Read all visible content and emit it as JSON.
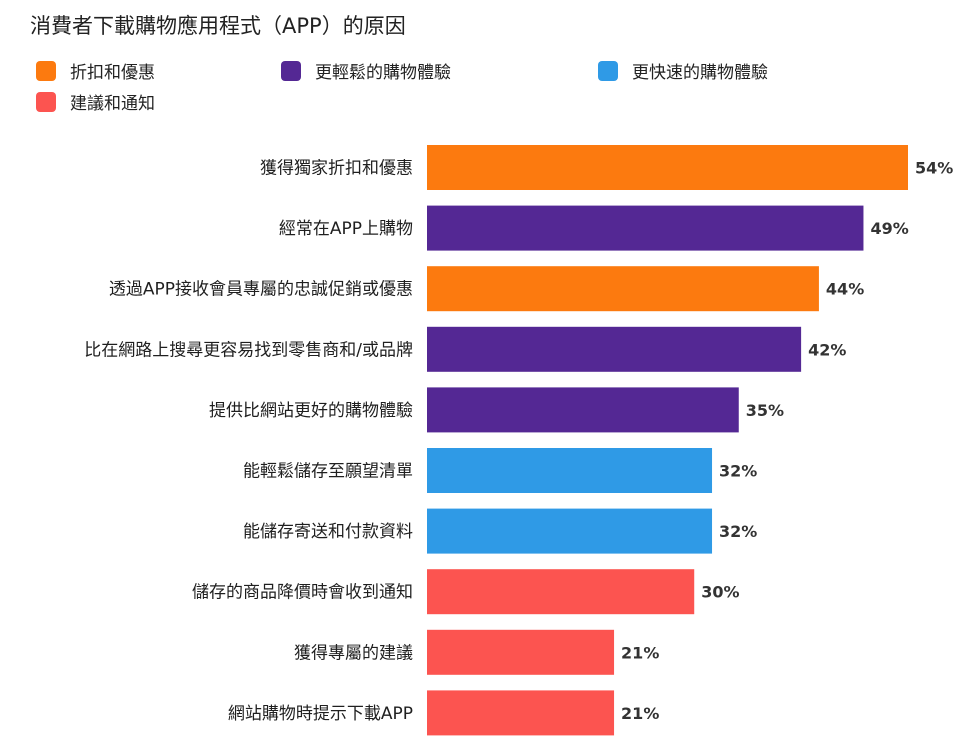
{
  "chart_data": {
    "type": "bar",
    "orientation": "horizontal",
    "title": "消費者下載購物應用程式（APP）的原因",
    "legend": [
      {
        "name": "折扣和優惠",
        "color": "#FC7A0F"
      },
      {
        "name": "更輕鬆的購物體驗",
        "color": "#542894"
      },
      {
        "name": "更快速的購物體驗",
        "color": "#2F9AE6"
      },
      {
        "name": "建議和通知",
        "color": "#FC5450"
      }
    ],
    "categories": [
      "獲得獨家折扣和優惠",
      "經常在APP上購物",
      "透過APP接收會員專屬的忠誠促銷或優惠",
      "比在網路上搜尋更容易找到零售商和/或品牌",
      "提供比網站更好的購物體驗",
      "能輕鬆儲存至願望清單",
      "能儲存寄送和付款資料",
      "儲存的商品降價時會收到通知",
      "獲得專屬的建議",
      "網站購物時提示下載APP"
    ],
    "values": [
      54,
      49,
      44,
      42,
      35,
      32,
      32,
      30,
      21,
      21
    ],
    "value_labels": [
      "54%",
      "49%",
      "44%",
      "42%",
      "35%",
      "32%",
      "32%",
      "30%",
      "21%",
      "21%"
    ],
    "groups": [
      0,
      1,
      0,
      1,
      1,
      2,
      2,
      3,
      3,
      3
    ],
    "xlim": [
      0,
      54
    ],
    "grid": false
  }
}
